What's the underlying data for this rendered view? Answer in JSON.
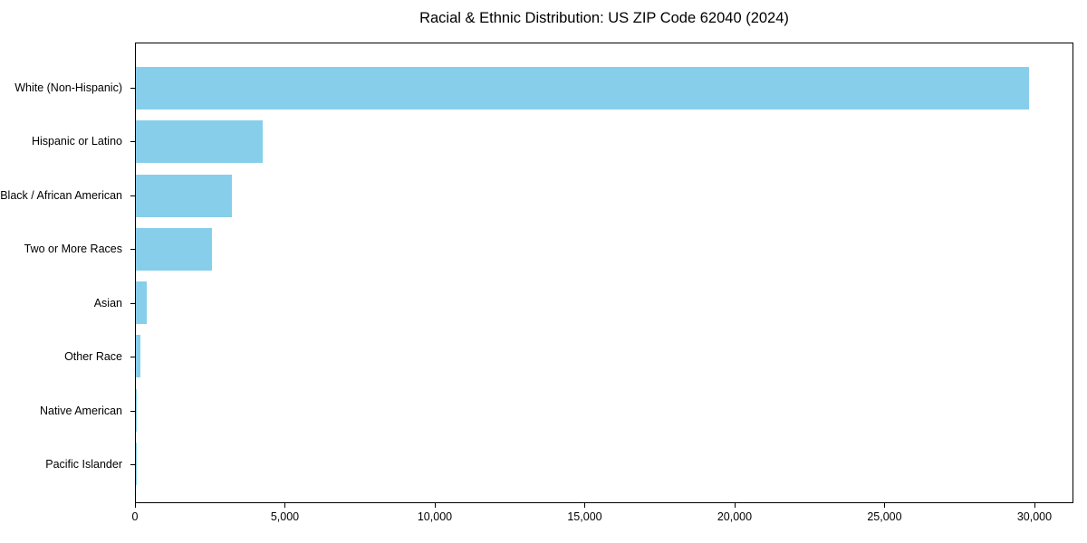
{
  "title": "Racial & Ethnic Distribution: US ZIP Code 62040 (2024)",
  "colors": {
    "bar": "#87CEEB",
    "axis": "#000000",
    "text": "#000000",
    "background": "#FFFFFF"
  },
  "chart_data": {
    "type": "bar",
    "orientation": "horizontal",
    "title": "Racial & Ethnic Distribution: US ZIP Code 62040 (2024)",
    "categories": [
      "White (Non-Hispanic)",
      "Hispanic or Latino",
      "Black / African American",
      "Two or More Races",
      "Asian",
      "Other Race",
      "Native American",
      "Pacific Islander"
    ],
    "values": [
      29840,
      4250,
      3200,
      2530,
      355,
      160,
      25,
      10
    ],
    "xlabel": "",
    "ylabel": "",
    "xlim": [
      0,
      31300
    ],
    "x_ticks": [
      {
        "value": 0,
        "label": "0"
      },
      {
        "value": 5000,
        "label": "5,000"
      },
      {
        "value": 10000,
        "label": "10,000"
      },
      {
        "value": 15000,
        "label": "15,000"
      },
      {
        "value": 20000,
        "label": "20,000"
      },
      {
        "value": 25000,
        "label": "25,000"
      },
      {
        "value": 30000,
        "label": "30,000"
      }
    ],
    "grid": false,
    "legend": false,
    "bar_color": "#87CEEB"
  }
}
